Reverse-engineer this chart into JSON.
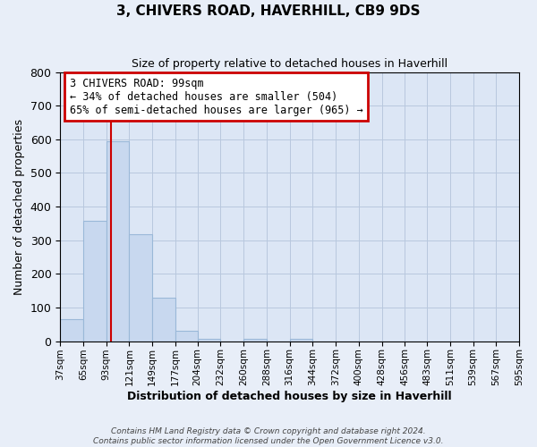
{
  "title": "3, CHIVERS ROAD, HAVERHILL, CB9 9DS",
  "subtitle": "Size of property relative to detached houses in Haverhill",
  "xlabel": "Distribution of detached houses by size in Haverhill",
  "ylabel": "Number of detached properties",
  "bin_edges": [
    37,
    65,
    93,
    121,
    149,
    177,
    204,
    232,
    260,
    288,
    316,
    344,
    372,
    400,
    428,
    456,
    483,
    511,
    539,
    567,
    595
  ],
  "bar_heights": [
    65,
    357,
    595,
    318,
    130,
    30,
    8,
    0,
    8,
    0,
    8,
    0,
    0,
    0,
    0,
    0,
    0,
    0,
    0,
    0
  ],
  "bar_color": "#c8d8ef",
  "bar_edge_color": "#9ab8d8",
  "vline_x": 99,
  "vline_color": "#cc0000",
  "ylim": [
    0,
    800
  ],
  "yticks": [
    0,
    100,
    200,
    300,
    400,
    500,
    600,
    700,
    800
  ],
  "annotation_title": "3 CHIVERS ROAD: 99sqm",
  "annotation_line1": "← 34% of detached houses are smaller (504)",
  "annotation_line2": "65% of semi-detached houses are larger (965) →",
  "annotation_box_color": "#cc0000",
  "footer_line1": "Contains HM Land Registry data © Crown copyright and database right 2024.",
  "footer_line2": "Contains public sector information licensed under the Open Government Licence v3.0.",
  "bg_color": "#e8eef8",
  "plot_bg_color": "#dce6f5",
  "grid_color": "#b8c8de"
}
